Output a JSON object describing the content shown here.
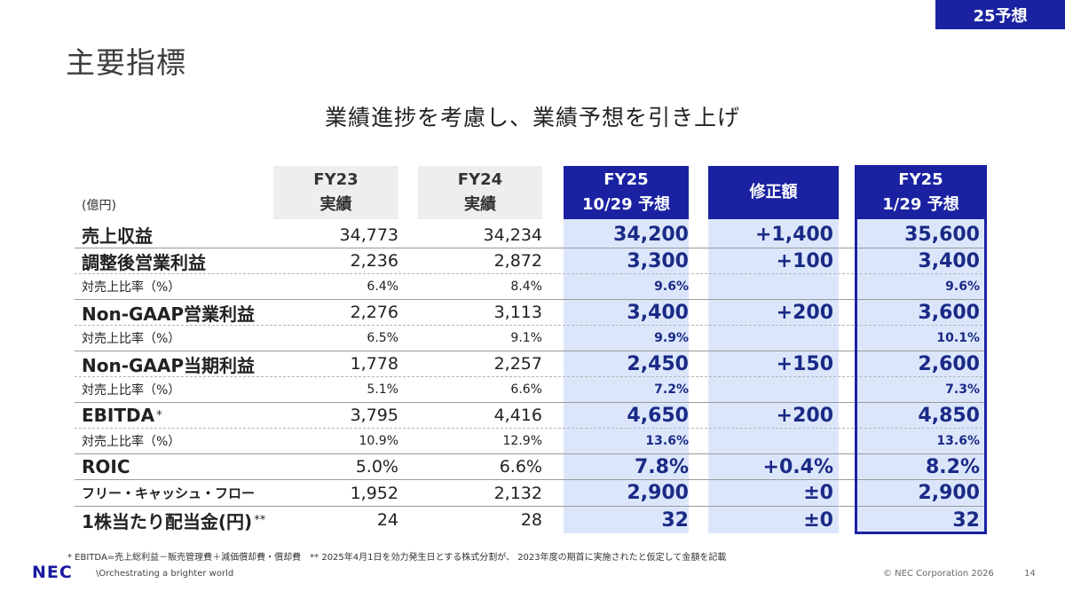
{
  "badge": "25予想",
  "title": "主要指標",
  "subtitle": "業績進捗を考慮し、業績予想を引き上げ",
  "unit": "(億円)",
  "columns": [
    {
      "line1": "FY23",
      "line2": "実績"
    },
    {
      "line1": "FY24",
      "line2": "実績"
    },
    {
      "line1": "FY25",
      "line2": "10/29 予想"
    },
    {
      "line1": "修正額",
      "line2": ""
    },
    {
      "line1": "FY25",
      "line2": "1/29 予想"
    }
  ],
  "rows": [
    {
      "label": "売上収益",
      "sup": "",
      "v": [
        "34,773",
        "34,234",
        "34,200",
        "+1,400",
        "35,600"
      ]
    },
    {
      "label": "調整後営業利益",
      "sup": "",
      "v": [
        "2,236",
        "2,872",
        "3,300",
        "+100",
        "3,400"
      ]
    },
    {
      "label": "対売上比率（%）",
      "v": [
        "6.4%",
        "8.4%",
        "9.6%",
        "",
        "9.6%"
      ]
    },
    {
      "label": "Non-GAAP営業利益",
      "sup": "",
      "v": [
        "2,276",
        "3,113",
        "3,400",
        "+200",
        "3,600"
      ]
    },
    {
      "label": "対売上比率（%）",
      "v": [
        "6.5%",
        "9.1%",
        "9.9%",
        "",
        "10.1%"
      ]
    },
    {
      "label": "Non-GAAP当期利益",
      "sup": "",
      "v": [
        "1,778",
        "2,257",
        "2,450",
        "+150",
        "2,600"
      ]
    },
    {
      "label": "対売上比率（%）",
      "v": [
        "5.1%",
        "6.6%",
        "7.2%",
        "",
        "7.3%"
      ]
    },
    {
      "label": "EBITDA",
      "sup": "*",
      "v": [
        "3,795",
        "4,416",
        "4,650",
        "+200",
        "4,850"
      ]
    },
    {
      "label": "対売上比率（%）",
      "v": [
        "10.9%",
        "12.9%",
        "13.6%",
        "",
        "13.6%"
      ]
    },
    {
      "label": "ROIC",
      "sup": "",
      "v": [
        "5.0%",
        "6.6%",
        "7.8%",
        "+0.4%",
        "8.2%"
      ]
    },
    {
      "label": "フリー・キャッシュ・フロー",
      "sup": "",
      "v": [
        "1,952",
        "2,132",
        "2,900",
        "±0",
        "2,900"
      ]
    },
    {
      "label": "1株当たり配当金(円)",
      "sup": "**",
      "v": [
        "24",
        "28",
        "32",
        "±0",
        "32"
      ]
    }
  ],
  "footnote": "* EBITDA=売上総利益－販売管理費＋減価償却費・償却費　** 2025年4月1日を効力発生日とする株式分割が、 2023年度の期首に実施されたと仮定して金額を記載",
  "logo": "NEC",
  "tagline": "\\Orchestrating a brighter world",
  "copyright": "© NEC Corporation 2026",
  "page_number": "14"
}
